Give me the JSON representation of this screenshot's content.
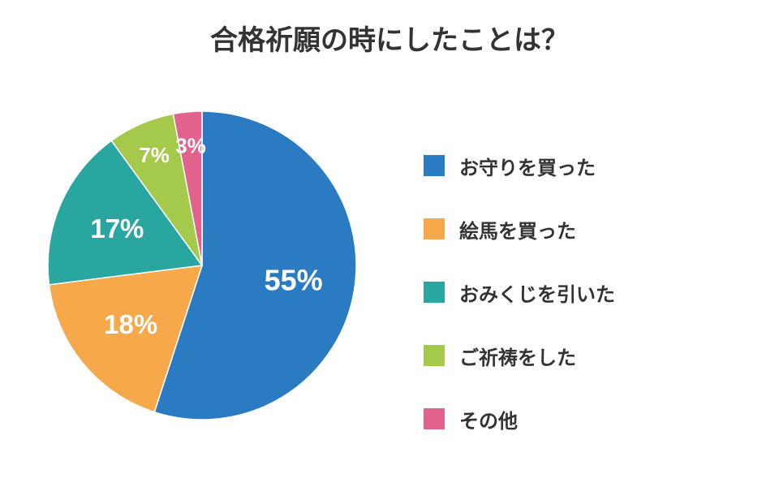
{
  "chart_data": {
    "type": "pie",
    "title": "合格祈願の時にしたことは？",
    "slices": [
      {
        "name": "お守りを買った",
        "value": 55,
        "label": "55%",
        "color": "#2a7bc2"
      },
      {
        "name": "絵馬を買った",
        "value": 18,
        "label": "18%",
        "color": "#f7a84a"
      },
      {
        "name": "おみくじを引いた",
        "value": 17,
        "label": "17%",
        "color": "#2aa6a0"
      },
      {
        "name": "ご祈祷をした",
        "value": 7,
        "label": "7%",
        "color": "#a5c94a"
      },
      {
        "name": "その他",
        "value": 3,
        "label": "3%",
        "color": "#e0628d"
      }
    ],
    "start": "top",
    "direction": "clockwise",
    "legend_position": "right"
  }
}
